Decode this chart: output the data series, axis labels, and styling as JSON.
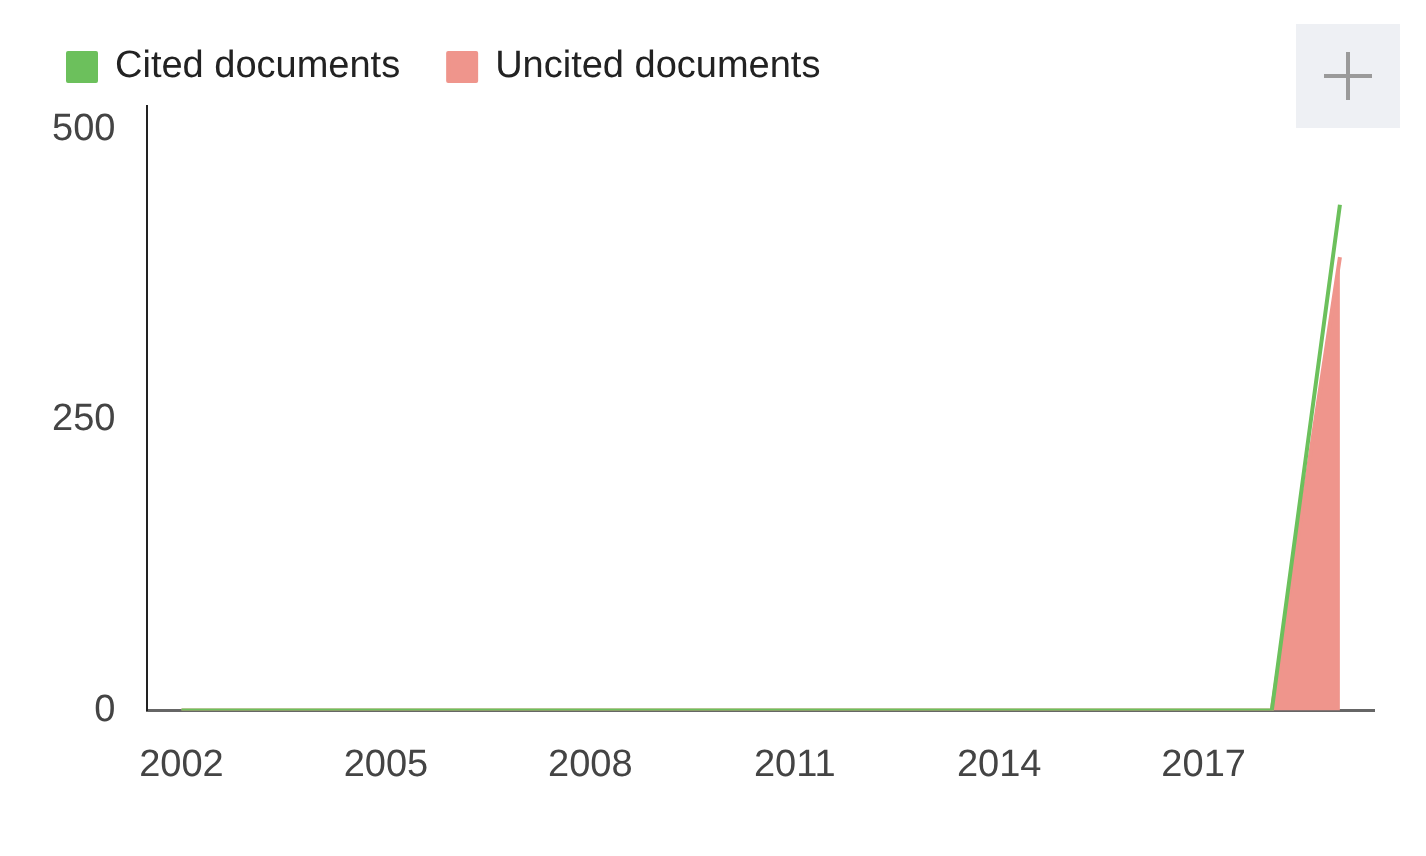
{
  "chart_data": {
    "type": "line",
    "x": [
      2002,
      2003,
      2004,
      2005,
      2006,
      2007,
      2008,
      2009,
      2010,
      2011,
      2012,
      2013,
      2014,
      2015,
      2016,
      2017,
      2018,
      2019
    ],
    "series": [
      {
        "name": "Cited documents",
        "type": "line",
        "color": "#6cc05c",
        "values": [
          0,
          0,
          0,
          0,
          0,
          0,
          0,
          0,
          0,
          0,
          0,
          0,
          0,
          0,
          0,
          0,
          0,
          435
        ]
      },
      {
        "name": "Uncited documents",
        "type": "area",
        "color": "#ef958c",
        "values": [
          0,
          0,
          0,
          0,
          0,
          0,
          0,
          0,
          0,
          0,
          0,
          0,
          0,
          0,
          0,
          0,
          0,
          390
        ]
      }
    ],
    "xlim": [
      2001.5,
      2019.5
    ],
    "xticks": [
      2002,
      2005,
      2008,
      2011,
      2014,
      2017
    ],
    "ylim": [
      0,
      520
    ],
    "yticks": [
      0,
      250,
      500
    ],
    "grid": false,
    "legend": "top",
    "marker": "none",
    "line_style": "solid"
  }
}
